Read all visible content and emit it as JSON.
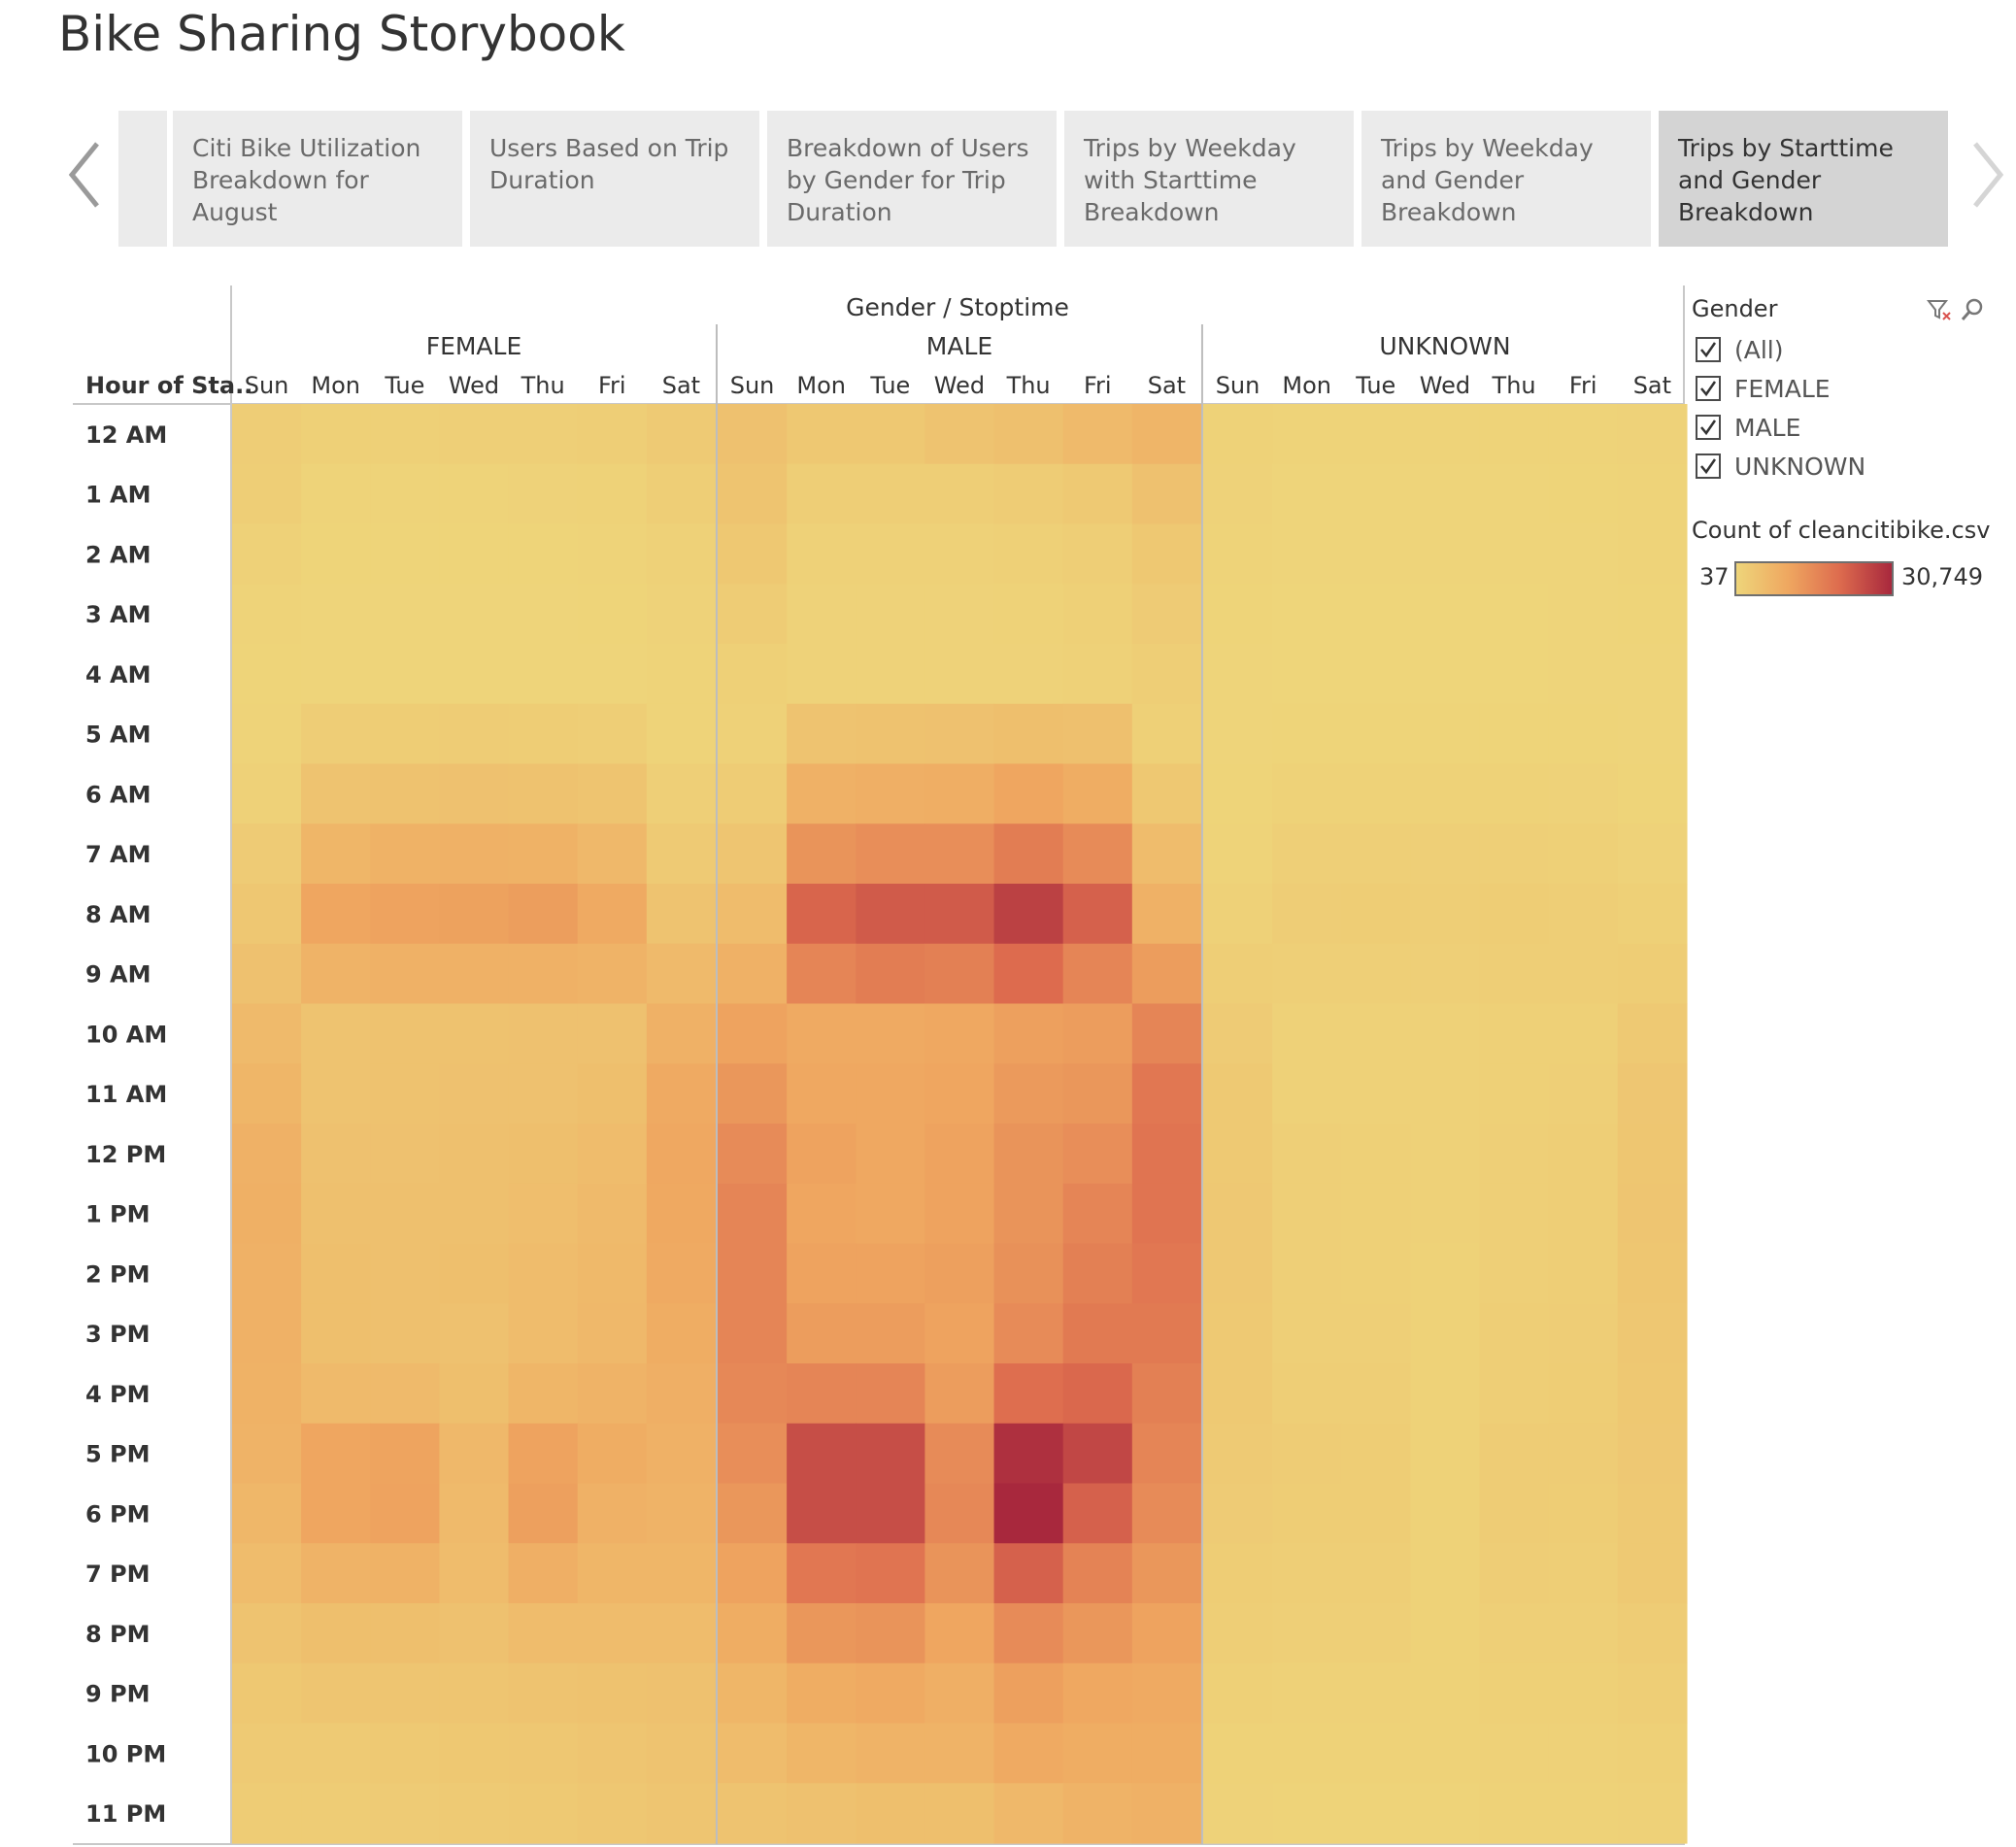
{
  "title": "Bike Sharing Storybook",
  "tabs": [
    {
      "label": "Citi Bike Utilization Breakdown for August"
    },
    {
      "label": "Users Based on Trip Duration"
    },
    {
      "label": "Breakdown of Users by Gender for Trip Duration"
    },
    {
      "label": "Trips by Weekday with Starttime Breakdown"
    },
    {
      "label": "Trips by Weekday and Gender Breakdown"
    },
    {
      "label": "Trips by Starttime and Gender Breakdown",
      "active": true
    }
  ],
  "legend": {
    "filter_title": "Gender",
    "filter_items": [
      "(All)",
      "FEMALE",
      "MALE",
      "UNKNOWN"
    ],
    "color_title": "Count of cleancitibike.csv",
    "color_min": "37",
    "color_max": "30,749",
    "color_stops": [
      "#eed57a",
      "#efa760",
      "#dd6b4e",
      "#a8283d"
    ]
  },
  "chart_data": {
    "type": "heatmap",
    "title": "",
    "column_group_label": "Gender / Stoptime",
    "row_label": "Hour of Sta..",
    "groups": [
      "FEMALE",
      "MALE",
      "UNKNOWN"
    ],
    "days": [
      "Sun",
      "Mon",
      "Tue",
      "Wed",
      "Thu",
      "Fri",
      "Sat"
    ],
    "hours": [
      "12 AM",
      "1 AM",
      "2 AM",
      "3 AM",
      "4 AM",
      "5 AM",
      "6 AM",
      "7 AM",
      "8 AM",
      "9 AM",
      "10 AM",
      "11 AM",
      "12 PM",
      "1 PM",
      "2 PM",
      "3 PM",
      "4 PM",
      "5 PM",
      "6 PM",
      "7 PM",
      "8 PM",
      "9 PM",
      "10 PM",
      "11 PM"
    ],
    "value_range": [
      37,
      30749
    ],
    "series": [
      {
        "name": "FEMALE",
        "values": [
          [
            1800,
            1200,
            1200,
            1300,
            1400,
            1700,
            2500
          ],
          [
            1600,
            500,
            500,
            500,
            600,
            700,
            1500
          ],
          [
            900,
            300,
            300,
            300,
            300,
            400,
            1000
          ],
          [
            500,
            200,
            200,
            200,
            200,
            300,
            600
          ],
          [
            300,
            200,
            200,
            200,
            200,
            200,
            400
          ],
          [
            500,
            1800,
            1900,
            2000,
            1900,
            1700,
            500
          ],
          [
            1000,
            4000,
            4300,
            4500,
            4300,
            3800,
            1300
          ],
          [
            2200,
            7000,
            7800,
            8000,
            7800,
            6500,
            2500
          ],
          [
            3200,
            10500,
            11000,
            11200,
            11800,
            9500,
            4000
          ],
          [
            4500,
            7500,
            8000,
            8000,
            8000,
            7500,
            6000
          ],
          [
            6000,
            4000,
            4200,
            4300,
            4500,
            4500,
            8000
          ],
          [
            7000,
            4000,
            4200,
            4400,
            4500,
            5000,
            9500
          ],
          [
            8000,
            4500,
            4500,
            4700,
            5000,
            5500,
            10000
          ],
          [
            8200,
            4600,
            4700,
            4800,
            5200,
            6000,
            9800
          ],
          [
            8000,
            5000,
            4800,
            5000,
            5500,
            6200,
            9500
          ],
          [
            8000,
            5000,
            4800,
            4500,
            5500,
            6500,
            9000
          ],
          [
            7800,
            6000,
            6000,
            5000,
            7000,
            7500,
            8500
          ],
          [
            7500,
            10500,
            10800,
            6500,
            11000,
            9000,
            8000
          ],
          [
            6800,
            10500,
            11000,
            6000,
            11500,
            8000,
            7500
          ],
          [
            5500,
            7500,
            7800,
            5500,
            8500,
            7000,
            7000
          ],
          [
            4000,
            5000,
            5000,
            4500,
            5500,
            5500,
            5500
          ],
          [
            3000,
            3500,
            3500,
            3500,
            4000,
            4200,
            4500
          ],
          [
            2500,
            2500,
            2800,
            3000,
            3200,
            3500,
            4000
          ],
          [
            2000,
            2000,
            2200,
            2500,
            2800,
            3200,
            3500
          ]
        ]
      },
      {
        "name": "MALE",
        "values": [
          [
            4500,
            3000,
            3000,
            4000,
            4800,
            6000,
            7200
          ],
          [
            3800,
            1500,
            1500,
            1700,
            2000,
            2800,
            4500
          ],
          [
            3000,
            900,
            900,
            1000,
            1200,
            1600,
            3000
          ],
          [
            2000,
            600,
            600,
            600,
            800,
            1200,
            2200
          ],
          [
            1200,
            600,
            600,
            600,
            600,
            900,
            1500
          ],
          [
            1000,
            4000,
            4300,
            4500,
            5000,
            4700,
            1200
          ],
          [
            2000,
            8000,
            8500,
            8800,
            10500,
            9000,
            3000
          ],
          [
            3500,
            13500,
            14500,
            14500,
            17500,
            15000,
            5500
          ],
          [
            5500,
            21500,
            23000,
            23000,
            27000,
            22000,
            8000
          ],
          [
            8000,
            16000,
            17500,
            17000,
            20500,
            16000,
            12000
          ],
          [
            11000,
            9500,
            9500,
            10000,
            11500,
            12000,
            16000
          ],
          [
            13000,
            10000,
            10000,
            10500,
            12500,
            13000,
            18500
          ],
          [
            15000,
            11000,
            10000,
            11000,
            13500,
            14500,
            19000
          ],
          [
            16000,
            10500,
            10000,
            11000,
            13500,
            16000,
            19000
          ],
          [
            16000,
            11000,
            11000,
            11500,
            14000,
            17000,
            18500
          ],
          [
            16000,
            12000,
            12000,
            11000,
            15000,
            18000,
            18000
          ],
          [
            15500,
            16000,
            16000,
            12000,
            20000,
            21000,
            17000
          ],
          [
            14500,
            25000,
            25000,
            15000,
            29500,
            26000,
            16000
          ],
          [
            13000,
            25000,
            25000,
            15500,
            30749,
            22000,
            15000
          ],
          [
            11000,
            18500,
            19000,
            13500,
            22000,
            16500,
            13000
          ],
          [
            9000,
            13000,
            13500,
            10500,
            15000,
            13000,
            11000
          ],
          [
            7000,
            9000,
            9500,
            8500,
            11500,
            10000,
            9500
          ],
          [
            5500,
            7000,
            7500,
            7500,
            9500,
            9000,
            9000
          ],
          [
            4000,
            4500,
            5000,
            5000,
            6500,
            7500,
            8000
          ]
        ]
      },
      {
        "name": "UNKNOWN",
        "values": [
          [
            700,
            400,
            400,
            400,
            400,
            500,
            600
          ],
          [
            600,
            200,
            200,
            200,
            200,
            300,
            500
          ],
          [
            400,
            150,
            150,
            150,
            150,
            200,
            400
          ],
          [
            300,
            100,
            100,
            100,
            100,
            150,
            300
          ],
          [
            200,
            100,
            100,
            100,
            100,
            150,
            200
          ],
          [
            200,
            300,
            300,
            300,
            300,
            300,
            200
          ],
          [
            300,
            700,
            700,
            700,
            700,
            600,
            300
          ],
          [
            500,
            1300,
            1400,
            1300,
            1300,
            1200,
            600
          ],
          [
            900,
            1800,
            1900,
            1700,
            1900,
            1700,
            1200
          ],
          [
            1500,
            1400,
            1400,
            1300,
            1500,
            1500,
            1900
          ],
          [
            2200,
            1000,
            1000,
            1000,
            1100,
            1200,
            2800
          ],
          [
            2600,
            1000,
            1000,
            900,
            1200,
            1400,
            3300
          ],
          [
            2800,
            1300,
            1200,
            900,
            1300,
            1500,
            3400
          ],
          [
            2900,
            1300,
            1200,
            900,
            1400,
            1600,
            3500
          ],
          [
            2900,
            1300,
            1200,
            800,
            1400,
            1700,
            3400
          ],
          [
            2800,
            1400,
            1300,
            700,
            1500,
            1800,
            3200
          ],
          [
            2600,
            1700,
            1600,
            700,
            1700,
            1900,
            3000
          ],
          [
            2400,
            2000,
            1900,
            800,
            2000,
            2000,
            2900
          ],
          [
            2200,
            1900,
            1900,
            800,
            2000,
            1900,
            2800
          ],
          [
            1900,
            1700,
            1700,
            800,
            1800,
            1700,
            2600
          ],
          [
            1500,
            1300,
            1300,
            800,
            1400,
            1400,
            2000
          ],
          [
            1100,
            1000,
            1000,
            800,
            1100,
            1100,
            1600
          ],
          [
            800,
            700,
            700,
            700,
            900,
            900,
            1200
          ],
          [
            600,
            500,
            500,
            500,
            700,
            800,
            1000
          ]
        ]
      }
    ]
  }
}
